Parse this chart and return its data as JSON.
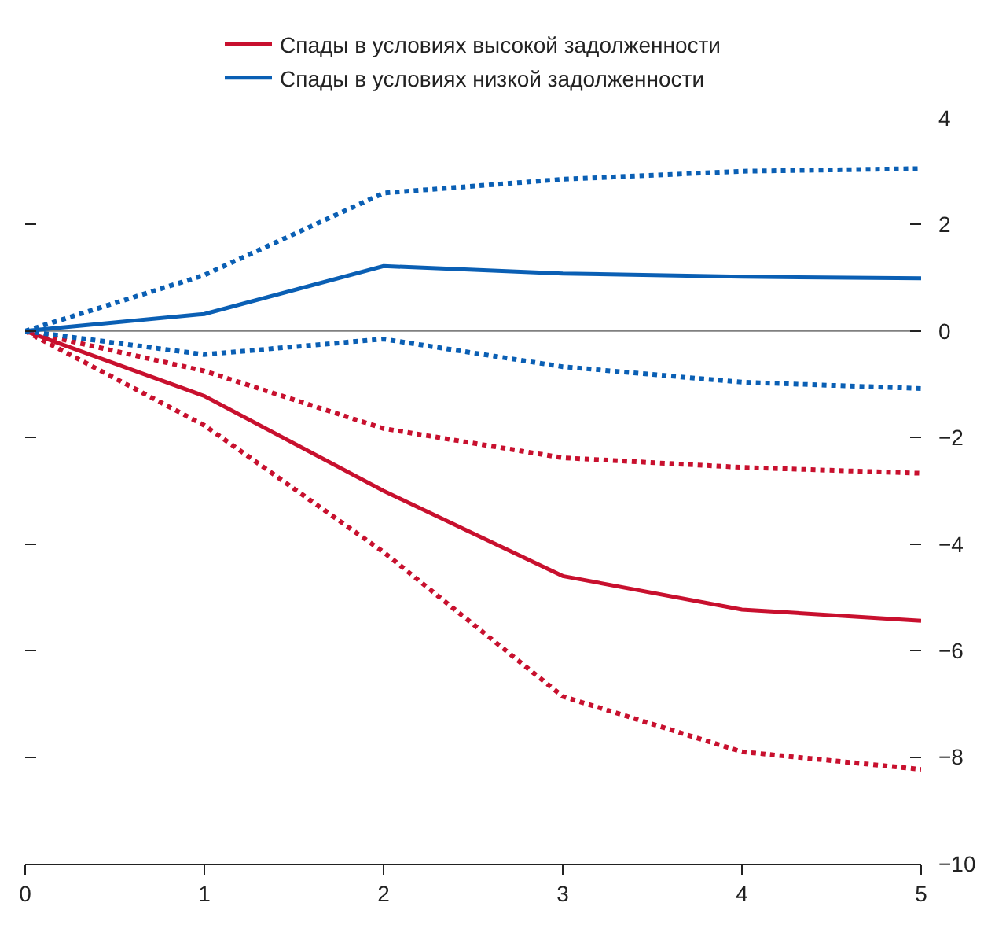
{
  "chart_data": {
    "type": "line",
    "x": [
      0,
      1,
      2,
      3,
      4,
      5
    ],
    "xlim": [
      0,
      5
    ],
    "xticks": [
      0,
      1,
      2,
      3,
      4,
      5
    ],
    "ylim": [
      -10,
      4
    ],
    "yticks": [
      -10,
      -8,
      -6,
      -4,
      -2,
      0,
      2,
      4
    ],
    "legend": "top",
    "grid": false,
    "ref_lines": [
      {
        "axis": "y",
        "value": 0,
        "color": "#808080"
      }
    ],
    "series": [
      {
        "name": "Спады в условиях высокой задолженности",
        "color": "#c8102e",
        "values": [
          0,
          -1.22,
          -3.0,
          -4.6,
          -5.23,
          -5.44
        ]
      },
      {
        "name": "Спады в условиях низкой задолженности",
        "color": "#0a5fb4",
        "values": [
          0,
          0.32,
          1.22,
          1.08,
          1.02,
          0.99
        ]
      },
      {
        "color": "#c8102e",
        "line_style": "dotted",
        "values": [
          0,
          -0.75,
          -1.83,
          -2.38,
          -2.56,
          -2.67
        ]
      },
      {
        "color": "#c8102e",
        "line_style": "dotted",
        "values": [
          0,
          -1.77,
          -4.15,
          -6.86,
          -7.9,
          -8.23
        ]
      },
      {
        "color": "#0a5fb4",
        "line_style": "dotted",
        "values": [
          0,
          1.05,
          2.59,
          2.85,
          3.0,
          3.05
        ]
      },
      {
        "color": "#0a5fb4",
        "line_style": "dotted",
        "values": [
          0,
          -0.44,
          -0.15,
          -0.67,
          -0.96,
          -1.08
        ]
      }
    ]
  }
}
